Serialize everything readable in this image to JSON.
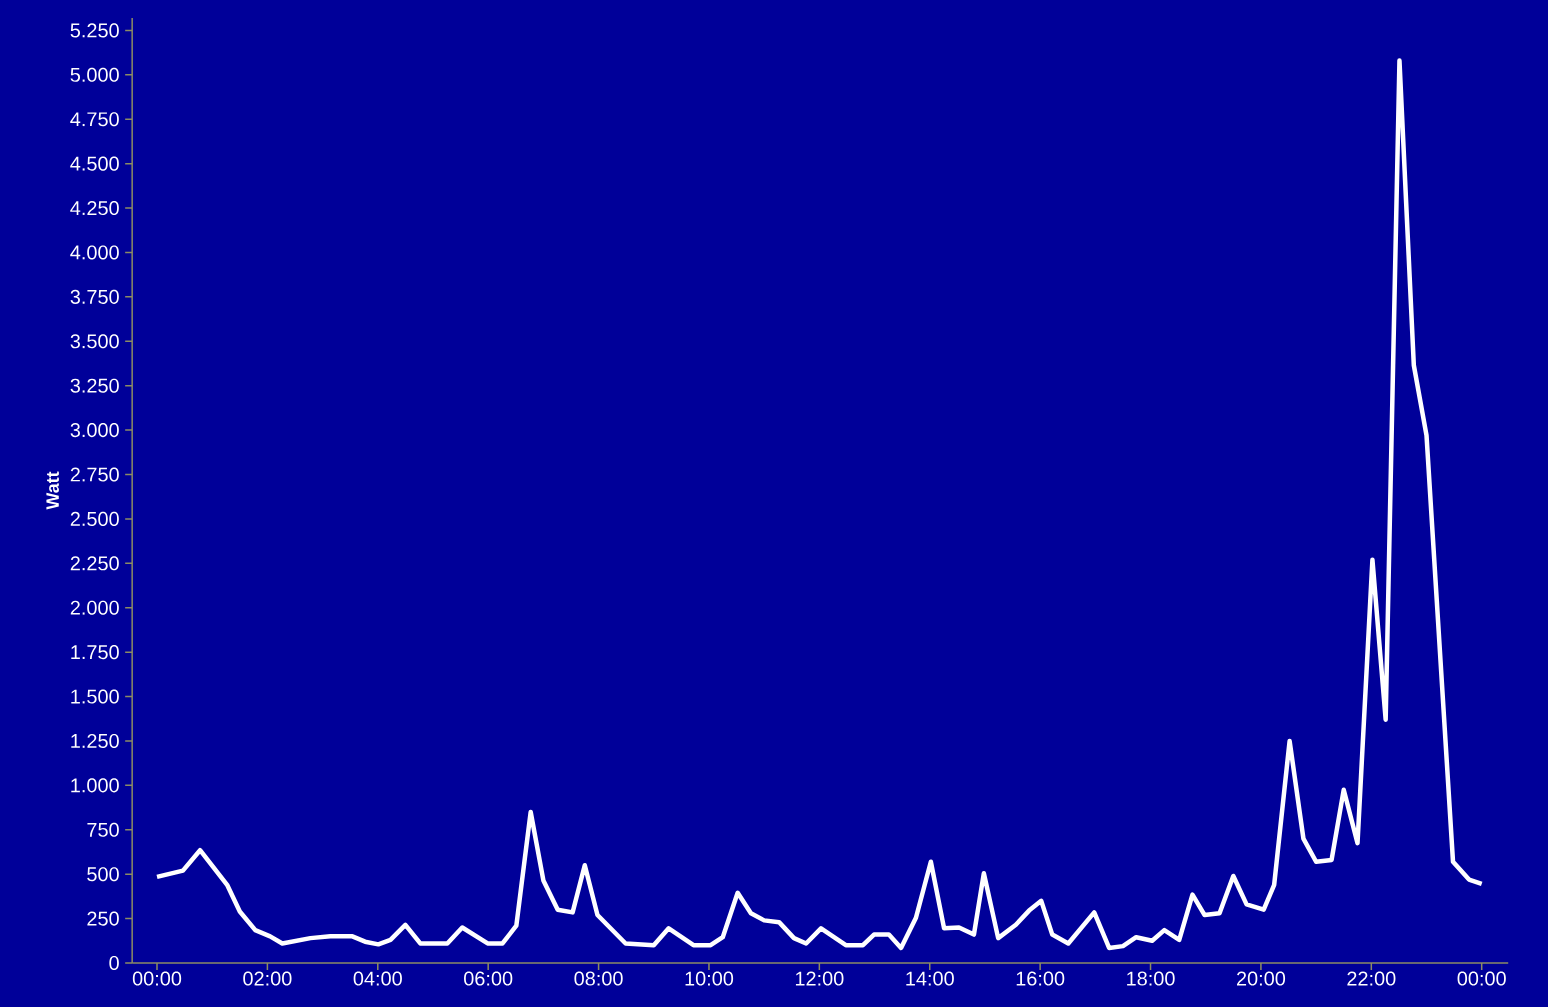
{
  "chart_data": {
    "type": "line",
    "ylabel": "Watt",
    "color": "#ffffff",
    "x": [
      0.0,
      0.47,
      0.78,
      1.27,
      1.5,
      1.78,
      2.05,
      2.27,
      2.78,
      3.14,
      3.54,
      3.77,
      4.01,
      4.23,
      4.5,
      4.77,
      5.26,
      5.53,
      5.99,
      6.26,
      6.51,
      6.77,
      7.0,
      7.26,
      7.53,
      7.75,
      7.98,
      8.49,
      9.0,
      9.27,
      9.72,
      10.03,
      10.25,
      10.52,
      10.76,
      11.0,
      11.27,
      11.54,
      11.76,
      12.03,
      12.48,
      12.79,
      12.99,
      13.26,
      13.48,
      13.75,
      14.02,
      14.26,
      14.53,
      14.8,
      14.98,
      15.24,
      15.56,
      15.8,
      16.02,
      16.22,
      16.51,
      16.98,
      17.25,
      17.5,
      17.74,
      18.03,
      18.25,
      18.52,
      18.76,
      18.98,
      19.25,
      19.5,
      19.74,
      20.05,
      20.24,
      20.52,
      20.77,
      21.0,
      21.28,
      21.5,
      21.75,
      22.02,
      22.26,
      22.51,
      22.77,
      23.0,
      23.48,
      23.77,
      24.0
    ],
    "values": [
      485,
      520,
      635,
      440,
      290,
      185,
      150,
      110,
      140,
      150,
      150,
      120,
      105,
      130,
      215,
      110,
      110,
      200,
      110,
      110,
      210,
      850,
      465,
      300,
      285,
      550,
      270,
      110,
      100,
      195,
      100,
      100,
      145,
      395,
      280,
      240,
      230,
      140,
      110,
      195,
      100,
      100,
      160,
      160,
      85,
      255,
      570,
      195,
      200,
      160,
      505,
      140,
      215,
      295,
      350,
      160,
      110,
      285,
      85,
      95,
      145,
      125,
      185,
      130,
      385,
      270,
      280,
      490,
      330,
      300,
      440,
      1250,
      700,
      570,
      580,
      975,
      675,
      2270,
      1370,
      5080,
      3365,
      2970,
      570,
      470,
      445
    ],
    "xlim": [
      -0.45,
      24.48
    ],
    "ylim": [
      0,
      5320
    ],
    "xticks": [
      {
        "value": 0,
        "label": "00:00"
      },
      {
        "value": 2,
        "label": "02:00"
      },
      {
        "value": 4,
        "label": "04:00"
      },
      {
        "value": 6,
        "label": "06:00"
      },
      {
        "value": 8,
        "label": "08:00"
      },
      {
        "value": 10,
        "label": "10:00"
      },
      {
        "value": 12,
        "label": "12:00"
      },
      {
        "value": 14,
        "label": "14:00"
      },
      {
        "value": 16,
        "label": "16:00"
      },
      {
        "value": 18,
        "label": "18:00"
      },
      {
        "value": 20,
        "label": "20:00"
      },
      {
        "value": 22,
        "label": "22:00"
      },
      {
        "value": 24,
        "label": "00:00"
      }
    ],
    "yticks": [
      0,
      250,
      500,
      750,
      {
        "value": 1000,
        "label": "1.000"
      },
      {
        "value": 1250,
        "label": "1.250"
      },
      {
        "value": 1500,
        "label": "1.500"
      },
      {
        "value": 1750,
        "label": "1.750"
      },
      {
        "value": 2000,
        "label": "2.000"
      },
      {
        "value": 2250,
        "label": "2.250"
      },
      {
        "value": 2500,
        "label": "2.500"
      },
      {
        "value": 2750,
        "label": "2.750"
      },
      {
        "value": 3000,
        "label": "3.000"
      },
      {
        "value": 3250,
        "label": "3.250"
      },
      {
        "value": 3500,
        "label": "3.500"
      },
      {
        "value": 3750,
        "label": "3.750"
      },
      {
        "value": 4000,
        "label": "4.000"
      },
      {
        "value": 4250,
        "label": "4.250"
      },
      {
        "value": 4500,
        "label": "4.500"
      },
      {
        "value": 4750,
        "label": "4.750"
      },
      {
        "value": 5000,
        "label": "5.000"
      },
      {
        "value": 5250,
        "label": "5.250"
      }
    ],
    "line_style": "solid"
  }
}
